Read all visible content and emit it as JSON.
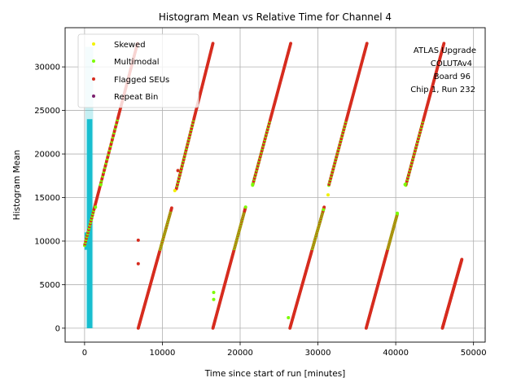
{
  "chart_data": {
    "type": "scatter",
    "title": "Histogram Mean vs Relative Time for Channel 4",
    "xlabel": "Time since start of run [minutes]",
    "ylabel": "Histogram Mean",
    "xlim": [
      -2500,
      51500
    ],
    "ylim": [
      -1600,
      34500
    ],
    "xticks": [
      0,
      10000,
      20000,
      30000,
      40000,
      50000
    ],
    "yticks": [
      0,
      5000,
      10000,
      15000,
      20000,
      25000,
      30000
    ],
    "grid": true,
    "legend_position": "upper-left",
    "annotation": [
      "ATLAS Upgrade",
      "COLUTAv4",
      "Board 96",
      "Chip 1, Run 232"
    ],
    "legend": [
      {
        "name": "Skewed",
        "color": "#f2f200"
      },
      {
        "name": "Multimodal",
        "color": "#7cfc00"
      },
      {
        "name": "Flagged SEUs",
        "color": "#d62c1f"
      },
      {
        "name": "Repeat Bin",
        "color": "#7b1f6e"
      }
    ],
    "ramps": [
      {
        "name": "ramp-1-upper",
        "x": [
          0,
          6800
        ],
        "y": [
          9500,
          32700
        ]
      },
      {
        "name": "ramp-2-lower",
        "x": [
          6900,
          11200
        ],
        "y": [
          0,
          13800
        ]
      },
      {
        "name": "ramp-2-upper",
        "x": [
          11800,
          16500
        ],
        "y": [
          16000,
          32700
        ]
      },
      {
        "name": "ramp-3-lower",
        "x": [
          16500,
          20700
        ],
        "y": [
          0,
          13900
        ]
      },
      {
        "name": "ramp-3-upper",
        "x": [
          21600,
          26500
        ],
        "y": [
          16400,
          32700
        ]
      },
      {
        "name": "ramp-4-lower",
        "x": [
          26400,
          30800
        ],
        "y": [
          0,
          13900
        ]
      },
      {
        "name": "ramp-4-upper",
        "x": [
          31400,
          36300
        ],
        "y": [
          16400,
          32700
        ]
      },
      {
        "name": "ramp-5-lower",
        "x": [
          36200,
          40200
        ],
        "y": [
          0,
          13100
        ]
      },
      {
        "name": "ramp-5-upper",
        "x": [
          41300,
          46200
        ],
        "y": [
          16400,
          32700
        ]
      },
      {
        "name": "ramp-6-lower",
        "x": [
          46000,
          48500
        ],
        "y": [
          0,
          7900
        ]
      }
    ],
    "outliers": [
      {
        "x": 6900,
        "y": 10100,
        "series": "Flagged SEUs"
      },
      {
        "x": 6900,
        "y": 7400,
        "series": "Flagged SEUs"
      },
      {
        "x": 12000,
        "y": 18100,
        "series": "Flagged SEUs"
      },
      {
        "x": 2100,
        "y": 16500,
        "series": "Multimodal"
      },
      {
        "x": 1400,
        "y": 13900,
        "series": "Multimodal"
      },
      {
        "x": 11600,
        "y": 15800,
        "series": "Skewed"
      },
      {
        "x": 21600,
        "y": 16500,
        "series": "Multimodal"
      },
      {
        "x": 16600,
        "y": 4100,
        "series": "Multimodal"
      },
      {
        "x": 16600,
        "y": 3300,
        "series": "Multimodal"
      },
      {
        "x": 26200,
        "y": 1200,
        "series": "Multimodal"
      },
      {
        "x": 31300,
        "y": 15300,
        "series": "Skewed"
      },
      {
        "x": 30700,
        "y": 13600,
        "series": "Multimodal"
      },
      {
        "x": 41200,
        "y": 16500,
        "series": "Multimodal"
      },
      {
        "x": 40200,
        "y": 13200,
        "series": "Multimodal"
      },
      {
        "x": 20700,
        "y": 13900,
        "series": "Multimodal"
      }
    ],
    "cyan_band": {
      "x": [
        200,
        1000
      ],
      "y": [
        0,
        32300
      ],
      "color": "#17becf"
    }
  }
}
